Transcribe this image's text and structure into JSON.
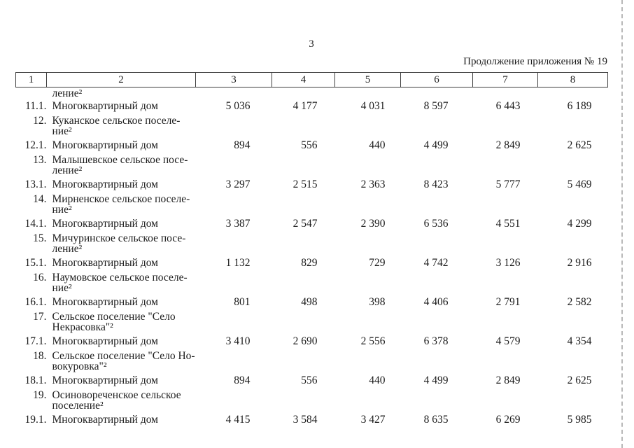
{
  "page": {
    "number": "3",
    "caption": "Продолжение приложения № 19"
  },
  "table": {
    "column_numbers": [
      "1",
      "2",
      "3",
      "4",
      "5",
      "6",
      "7",
      "8"
    ],
    "rows": [
      {
        "type": "continuation",
        "num": "",
        "name_lines": [
          "ление²"
        ],
        "values": []
      },
      {
        "type": "item",
        "num": "11.1.",
        "name_lines": [
          "Многоквартирный дом"
        ],
        "values": [
          "5 036",
          "4 177",
          "4 031",
          "8 597",
          "6 443",
          "6 189"
        ]
      },
      {
        "type": "group",
        "num": "12.",
        "name_lines": [
          "Куканское сельское поселе-",
          "ние²"
        ],
        "values": []
      },
      {
        "type": "item",
        "num": "12.1.",
        "name_lines": [
          "Многоквартирный дом"
        ],
        "values": [
          "894",
          "556",
          "440",
          "4 499",
          "2 849",
          "2 625"
        ]
      },
      {
        "type": "group",
        "num": "13.",
        "name_lines": [
          "Малышевское сельское посе-",
          "ление²"
        ],
        "values": []
      },
      {
        "type": "item",
        "num": "13.1.",
        "name_lines": [
          "Многоквартирный дом"
        ],
        "values": [
          "3 297",
          "2 515",
          "2 363",
          "8 423",
          "5 777",
          "5 469"
        ]
      },
      {
        "type": "group",
        "num": "14.",
        "name_lines": [
          "Мирненское сельское поселе-",
          "ние²"
        ],
        "values": []
      },
      {
        "type": "item",
        "num": "14.1.",
        "name_lines": [
          "Многоквартирный дом"
        ],
        "values": [
          "3 387",
          "2 547",
          "2 390",
          "6 536",
          "4 551",
          "4 299"
        ]
      },
      {
        "type": "group",
        "num": "15.",
        "name_lines": [
          "Мичуринское сельское посе-",
          "ление²"
        ],
        "values": []
      },
      {
        "type": "item",
        "num": "15.1.",
        "name_lines": [
          "Многоквартирный дом"
        ],
        "values": [
          "1 132",
          "829",
          "729",
          "4 742",
          "3 126",
          "2 916"
        ]
      },
      {
        "type": "group",
        "num": "16.",
        "name_lines": [
          "Наумовское сельское поселе-",
          "ние²"
        ],
        "values": []
      },
      {
        "type": "item",
        "num": "16.1.",
        "name_lines": [
          "Многоквартирный дом"
        ],
        "values": [
          "801",
          "498",
          "398",
          "4 406",
          "2 791",
          "2 582"
        ]
      },
      {
        "type": "group",
        "num": "17.",
        "name_lines": [
          "Сельское поселение \"Село",
          "Некрасовка\"²"
        ],
        "values": []
      },
      {
        "type": "item",
        "num": "17.1.",
        "name_lines": [
          "Многоквартирный дом"
        ],
        "values": [
          "3 410",
          "2 690",
          "2 556",
          "6 378",
          "4 579",
          "4 354"
        ]
      },
      {
        "type": "group",
        "num": "18.",
        "name_lines": [
          "Сельское поселение \"Село Но-",
          "вокуровка\"²"
        ],
        "values": []
      },
      {
        "type": "item",
        "num": "18.1.",
        "name_lines": [
          "Многоквартирный дом"
        ],
        "values": [
          "894",
          "556",
          "440",
          "4 499",
          "2 849",
          "2 625"
        ]
      },
      {
        "type": "group",
        "num": "19.",
        "name_lines": [
          "Осиновореченское сельское",
          "поселение²"
        ],
        "values": []
      },
      {
        "type": "item",
        "num": "19.1.",
        "name_lines": [
          "Многоквартирный дом"
        ],
        "values": [
          "4 415",
          "3 584",
          "3 427",
          "8 635",
          "6 269",
          "5 985"
        ]
      }
    ]
  }
}
